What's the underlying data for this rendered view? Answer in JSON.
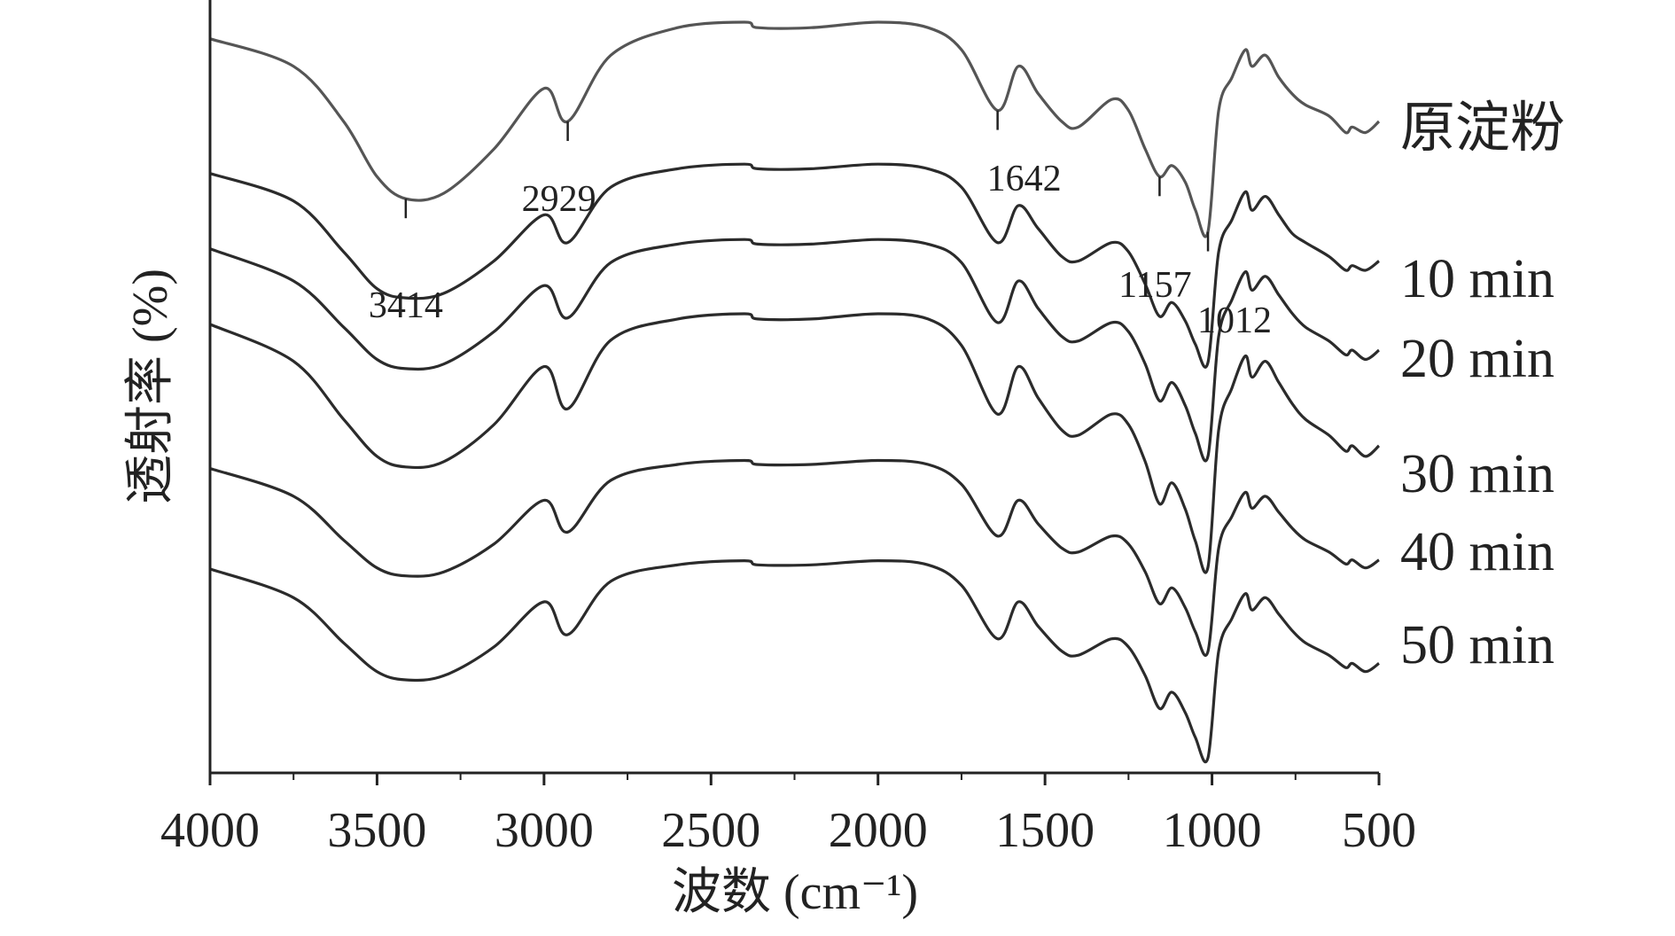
{
  "chart_data": {
    "type": "line",
    "title": "",
    "xlabel": "波数 (cm⁻¹)",
    "ylabel": "透射率 (%)",
    "xlim": [
      4000,
      500
    ],
    "x_direction": "reversed",
    "y_ticks_shown": false,
    "grid": false,
    "x_ticks": [
      4000,
      3500,
      3000,
      2500,
      2000,
      1500,
      1000,
      500
    ],
    "x_tick_labels": [
      "4000",
      "3500",
      "3000",
      "2500",
      "2000",
      "1500",
      "1000",
      "500"
    ],
    "legend_placement": "right, each label beside the end of its curve",
    "annotations": [
      {
        "label": "3414",
        "x": 3414
      },
      {
        "label": "2929",
        "x": 2929
      },
      {
        "label": "1642",
        "x": 1642
      },
      {
        "label": "1157",
        "x": 1157
      },
      {
        "label": "1012",
        "x": 1012
      }
    ],
    "x": [
      4000,
      3750,
      3600,
      3500,
      3414,
      3300,
      3150,
      3000,
      2929,
      2800,
      2600,
      2400,
      2360,
      2200,
      2000,
      1850,
      1750,
      1642,
      1580,
      1520,
      1450,
      1400,
      1300,
      1250,
      1200,
      1157,
      1120,
      1080,
      1050,
      1012,
      980,
      940,
      900,
      880,
      840,
      800,
      760,
      720,
      650,
      600,
      580,
      540,
      500
    ],
    "series": [
      {
        "name": "原淀粉",
        "values": [
          95,
          90,
          80,
          70,
          66,
          67,
          75,
          86,
          80,
          92,
          97,
          98,
          97,
          97,
          98,
          97,
          93,
          82,
          90,
          85,
          80,
          79,
          84,
          82,
          75,
          70,
          72,
          69,
          64,
          60,
          82,
          88,
          93,
          90,
          92,
          88,
          85,
          83,
          81,
          78,
          79,
          78,
          80
        ]
      },
      {
        "name": "10 min",
        "values": [
          95,
          89,
          78,
          70,
          68,
          69,
          76,
          86,
          80,
          92,
          96,
          97,
          96,
          96,
          97,
          96,
          92,
          80,
          88,
          83,
          77,
          76,
          80,
          78,
          71,
          64,
          67,
          63,
          58,
          54,
          78,
          85,
          91,
          87,
          90,
          86,
          82,
          80,
          77,
          74,
          75,
          74,
          76
        ]
      },
      {
        "name": "20 min",
        "values": [
          95,
          88,
          78,
          71,
          69,
          70,
          77,
          87,
          80,
          92,
          96,
          97,
          96,
          96,
          97,
          96,
          92,
          79,
          88,
          82,
          76,
          75,
          79,
          77,
          70,
          62,
          66,
          61,
          55,
          50,
          76,
          84,
          90,
          86,
          89,
          85,
          81,
          78,
          75,
          72,
          73,
          71,
          73
        ]
      },
      {
        "name": "30 min",
        "values": [
          95,
          88,
          77,
          70,
          68,
          69,
          76,
          87,
          79,
          92,
          96,
          97,
          96,
          96,
          97,
          96,
          91,
          78,
          87,
          81,
          75,
          74,
          78,
          76,
          69,
          61,
          65,
          60,
          54,
          49,
          75,
          83,
          89,
          85,
          88,
          84,
          80,
          77,
          74,
          71,
          72,
          70,
          72
        ]
      },
      {
        "name": "40 min",
        "values": [
          95,
          88,
          77,
          70,
          68,
          69,
          76,
          87,
          79,
          92,
          96,
          97,
          96,
          96,
          97,
          96,
          91,
          78,
          87,
          81,
          75,
          74,
          78,
          76,
          69,
          61,
          65,
          60,
          54,
          49,
          75,
          83,
          89,
          85,
          88,
          84,
          80,
          77,
          74,
          71,
          72,
          70,
          72
        ]
      },
      {
        "name": "50 min",
        "values": [
          95,
          88,
          77,
          70,
          68,
          69,
          76,
          87,
          79,
          92,
          96,
          97,
          96,
          96,
          97,
          96,
          91,
          78,
          87,
          81,
          75,
          74,
          78,
          76,
          69,
          61,
          65,
          60,
          54,
          49,
          75,
          83,
          89,
          85,
          88,
          84,
          80,
          77,
          74,
          71,
          72,
          70,
          72
        ]
      }
    ],
    "colors": {
      "series": [
        "#555555",
        "#2b2b2b",
        "#2b2b2b",
        "#2b2b2b",
        "#2b2b2b",
        "#2b2b2b"
      ],
      "axis": "#222222",
      "text": "#222222"
    }
  }
}
